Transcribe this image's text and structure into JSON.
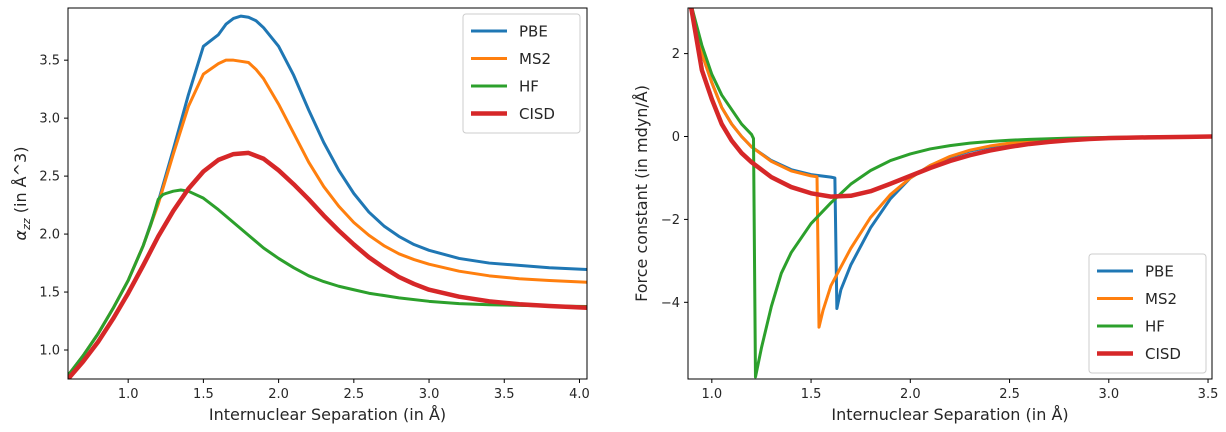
{
  "chart_data": [
    {
      "type": "line",
      "xlabel": "Internuclear Separation (in Å)",
      "ylabel_math": "α",
      "ylabel_sub": "zz",
      "ylabel_rest": " (in Å^3)",
      "xlim": [
        0.6,
        4.05
      ],
      "ylim": [
        0.75,
        3.95
      ],
      "xticks": [
        1.0,
        1.5,
        2.0,
        2.5,
        3.0,
        3.5,
        4.0
      ],
      "xtick_labels": [
        "1.0",
        "1.5",
        "2.0",
        "2.5",
        "3.0",
        "3.5",
        "4.0"
      ],
      "yticks": [
        1.0,
        1.5,
        2.0,
        2.5,
        3.0,
        3.5
      ],
      "ytick_labels": [
        "1.0",
        "1.5",
        "2.0",
        "2.5",
        "3.0",
        "3.5"
      ],
      "legend": "top-right",
      "series": [
        {
          "name": "PBE",
          "color": "#1f77b4",
          "width": 3,
          "x": [
            0.6,
            0.7,
            0.8,
            0.9,
            1.0,
            1.1,
            1.2,
            1.3,
            1.4,
            1.5,
            1.6,
            1.65,
            1.7,
            1.75,
            1.8,
            1.85,
            1.9,
            2.0,
            2.1,
            2.2,
            2.3,
            2.4,
            2.5,
            2.6,
            2.7,
            2.8,
            2.9,
            3.0,
            3.2,
            3.4,
            3.6,
            3.8,
            4.05
          ],
          "y": [
            0.78,
            0.95,
            1.14,
            1.36,
            1.6,
            1.9,
            2.28,
            2.73,
            3.2,
            3.62,
            3.72,
            3.81,
            3.86,
            3.88,
            3.87,
            3.84,
            3.78,
            3.62,
            3.37,
            3.07,
            2.79,
            2.55,
            2.35,
            2.19,
            2.07,
            1.98,
            1.91,
            1.86,
            1.79,
            1.75,
            1.73,
            1.71,
            1.695
          ]
        },
        {
          "name": "MS2",
          "color": "#ff7f0e",
          "width": 3,
          "x": [
            0.6,
            0.7,
            0.8,
            0.9,
            1.0,
            1.1,
            1.2,
            1.3,
            1.4,
            1.5,
            1.6,
            1.65,
            1.7,
            1.75,
            1.8,
            1.85,
            1.9,
            2.0,
            2.1,
            2.2,
            2.3,
            2.4,
            2.5,
            2.6,
            2.7,
            2.8,
            2.9,
            3.0,
            3.2,
            3.4,
            3.6,
            3.8,
            4.05
          ],
          "y": [
            0.78,
            0.95,
            1.14,
            1.36,
            1.6,
            1.9,
            2.26,
            2.69,
            3.1,
            3.38,
            3.47,
            3.5,
            3.5,
            3.49,
            3.48,
            3.42,
            3.34,
            3.12,
            2.87,
            2.62,
            2.41,
            2.24,
            2.1,
            1.99,
            1.9,
            1.83,
            1.78,
            1.74,
            1.68,
            1.64,
            1.615,
            1.6,
            1.585
          ]
        },
        {
          "name": "HF",
          "color": "#2ca02c",
          "width": 3,
          "x": [
            0.6,
            0.7,
            0.8,
            0.9,
            1.0,
            1.1,
            1.15,
            1.2,
            1.23,
            1.25,
            1.3,
            1.35,
            1.4,
            1.5,
            1.6,
            1.7,
            1.8,
            1.9,
            2.0,
            2.1,
            2.2,
            2.3,
            2.4,
            2.5,
            2.6,
            2.7,
            2.8,
            3.0,
            3.2,
            3.4,
            3.6,
            3.8,
            4.05
          ],
          "y": [
            0.78,
            0.95,
            1.14,
            1.36,
            1.6,
            1.9,
            2.08,
            2.3,
            2.34,
            2.35,
            2.37,
            2.38,
            2.37,
            2.31,
            2.21,
            2.1,
            1.99,
            1.88,
            1.79,
            1.71,
            1.64,
            1.59,
            1.55,
            1.52,
            1.49,
            1.47,
            1.45,
            1.42,
            1.4,
            1.39,
            1.385,
            1.38,
            1.375
          ]
        },
        {
          "name": "CISD",
          "color": "#d62728",
          "width": 4.5,
          "x": [
            0.6,
            0.7,
            0.8,
            0.9,
            1.0,
            1.1,
            1.2,
            1.3,
            1.4,
            1.5,
            1.6,
            1.7,
            1.8,
            1.9,
            2.0,
            2.1,
            2.2,
            2.3,
            2.4,
            2.5,
            2.6,
            2.7,
            2.8,
            2.9,
            3.0,
            3.2,
            3.4,
            3.6,
            3.8,
            4.05
          ],
          "y": [
            0.75,
            0.9,
            1.07,
            1.27,
            1.49,
            1.73,
            1.98,
            2.2,
            2.39,
            2.54,
            2.64,
            2.69,
            2.7,
            2.65,
            2.55,
            2.43,
            2.3,
            2.16,
            2.03,
            1.91,
            1.8,
            1.71,
            1.63,
            1.57,
            1.52,
            1.46,
            1.42,
            1.395,
            1.38,
            1.365
          ]
        }
      ]
    },
    {
      "type": "line",
      "xlabel": "Internuclear Separation (in Å)",
      "ylabel": "Force constant (in mdyn/Å)",
      "xlim": [
        0.88,
        3.52
      ],
      "ylim": [
        -5.85,
        3.1
      ],
      "xticks": [
        1.0,
        1.5,
        2.0,
        2.5,
        3.0,
        3.5
      ],
      "xtick_labels": [
        "1.0",
        "1.5",
        "2.0",
        "2.5",
        "3.0",
        "3.5"
      ],
      "yticks": [
        -4,
        -2,
        0,
        2
      ],
      "ytick_labels": [
        "−4",
        "−2",
        "0",
        "2"
      ],
      "legend": "lower-right",
      "series": [
        {
          "name": "PBE",
          "color": "#1f77b4",
          "width": 3,
          "x": [
            0.88,
            0.9,
            0.95,
            1.0,
            1.05,
            1.1,
            1.15,
            1.2,
            1.3,
            1.4,
            1.5,
            1.55,
            1.6,
            1.62,
            1.63,
            1.65,
            1.7,
            1.8,
            1.9,
            2.0,
            2.1,
            2.2,
            2.3,
            2.4,
            2.5,
            2.6,
            2.8,
            3.0,
            3.2,
            3.4,
            3.52
          ],
          "y": [
            3.5,
            3.1,
            2.0,
            1.3,
            0.7,
            0.3,
            0.0,
            -0.25,
            -0.58,
            -0.8,
            -0.92,
            -0.95,
            -0.98,
            -1.0,
            -4.15,
            -3.7,
            -3.1,
            -2.2,
            -1.5,
            -1.0,
            -0.7,
            -0.5,
            -0.35,
            -0.25,
            -0.17,
            -0.12,
            -0.07,
            -0.04,
            -0.02,
            -0.01,
            0.0
          ]
        },
        {
          "name": "MS2",
          "color": "#ff7f0e",
          "width": 3,
          "x": [
            0.88,
            0.9,
            0.95,
            1.0,
            1.05,
            1.1,
            1.15,
            1.2,
            1.3,
            1.4,
            1.5,
            1.53,
            1.54,
            1.56,
            1.6,
            1.7,
            1.8,
            1.9,
            2.0,
            2.1,
            2.2,
            2.3,
            2.4,
            2.5,
            2.6,
            2.8,
            3.0,
            3.2,
            3.4,
            3.52
          ],
          "y": [
            3.5,
            3.1,
            2.0,
            1.3,
            0.7,
            0.3,
            0.0,
            -0.25,
            -0.6,
            -0.83,
            -0.95,
            -0.97,
            -4.6,
            -4.2,
            -3.6,
            -2.7,
            -1.95,
            -1.4,
            -1.0,
            -0.7,
            -0.48,
            -0.33,
            -0.23,
            -0.16,
            -0.11,
            -0.06,
            -0.03,
            -0.02,
            -0.01,
            0.0
          ]
        },
        {
          "name": "HF",
          "color": "#2ca02c",
          "width": 3,
          "x": [
            0.88,
            0.9,
            0.95,
            1.0,
            1.05,
            1.1,
            1.15,
            1.2,
            1.21,
            1.22,
            1.25,
            1.3,
            1.35,
            1.4,
            1.5,
            1.6,
            1.7,
            1.8,
            1.9,
            2.0,
            2.1,
            2.2,
            2.3,
            2.4,
            2.5,
            2.6,
            2.8,
            3.0,
            3.2,
            3.4,
            3.52
          ],
          "y": [
            3.5,
            3.1,
            2.2,
            1.5,
            1.0,
            0.65,
            0.3,
            0.05,
            -0.05,
            -5.8,
            -5.1,
            -4.1,
            -3.3,
            -2.8,
            -2.1,
            -1.6,
            -1.15,
            -0.82,
            -0.58,
            -0.42,
            -0.3,
            -0.22,
            -0.16,
            -0.12,
            -0.09,
            -0.07,
            -0.04,
            -0.02,
            -0.01,
            -0.01,
            0.0
          ]
        },
        {
          "name": "CISD",
          "color": "#d62728",
          "width": 4.5,
          "x": [
            0.88,
            0.9,
            0.95,
            1.0,
            1.05,
            1.1,
            1.15,
            1.2,
            1.3,
            1.4,
            1.5,
            1.6,
            1.7,
            1.8,
            1.9,
            2.0,
            2.1,
            2.2,
            2.3,
            2.4,
            2.5,
            2.6,
            2.7,
            2.8,
            2.9,
            3.0,
            3.2,
            3.4,
            3.52
          ],
          "y": [
            3.5,
            3.0,
            1.6,
            0.9,
            0.3,
            -0.1,
            -0.4,
            -0.62,
            -0.98,
            -1.22,
            -1.37,
            -1.45,
            -1.43,
            -1.32,
            -1.14,
            -0.95,
            -0.76,
            -0.59,
            -0.45,
            -0.34,
            -0.25,
            -0.18,
            -0.13,
            -0.09,
            -0.06,
            -0.04,
            -0.02,
            -0.01,
            0.0
          ]
        }
      ]
    }
  ]
}
